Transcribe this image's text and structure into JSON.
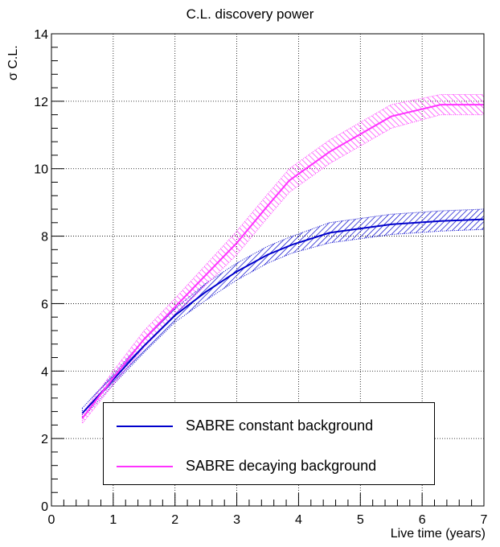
{
  "chart_data": {
    "type": "line",
    "title": "C.L. discovery power",
    "xlabel": "Live time (years)",
    "ylabel": "σ C.L.",
    "xlim": [
      0,
      7
    ],
    "ylim": [
      0,
      14
    ],
    "xticks": [
      "0",
      "1",
      "2",
      "3",
      "4",
      "5",
      "6",
      "7"
    ],
    "yticks": [
      "0",
      "2",
      "4",
      "6",
      "8",
      "10",
      "12",
      "14"
    ],
    "grid": true,
    "legend_position": "bottom-center",
    "series": [
      {
        "name": "SABRE constant background",
        "color": "#0000cc",
        "x": [
          0.5,
          1.0,
          1.5,
          2.0,
          2.5,
          3.0,
          3.5,
          3.9,
          4.5,
          5.5,
          6.3,
          7.0
        ],
        "y": [
          2.75,
          3.75,
          4.75,
          5.65,
          6.35,
          6.95,
          7.45,
          7.75,
          8.1,
          8.35,
          8.45,
          8.5
        ],
        "err": [
          0.15,
          0.15,
          0.2,
          0.2,
          0.25,
          0.25,
          0.25,
          0.25,
          0.3,
          0.3,
          0.3,
          0.3
        ]
      },
      {
        "name": "SABRE decaying background",
        "color": "#ff33ff",
        "x": [
          0.5,
          1.0,
          1.5,
          2.0,
          2.5,
          3.0,
          3.5,
          3.85,
          4.5,
          5.5,
          6.3,
          7.0
        ],
        "y": [
          2.6,
          3.8,
          4.95,
          5.9,
          6.85,
          7.8,
          8.9,
          9.65,
          10.5,
          11.55,
          11.9,
          11.9
        ],
        "err": [
          0.15,
          0.2,
          0.25,
          0.25,
          0.3,
          0.35,
          0.35,
          0.35,
          0.35,
          0.35,
          0.3,
          0.3
        ]
      }
    ]
  }
}
